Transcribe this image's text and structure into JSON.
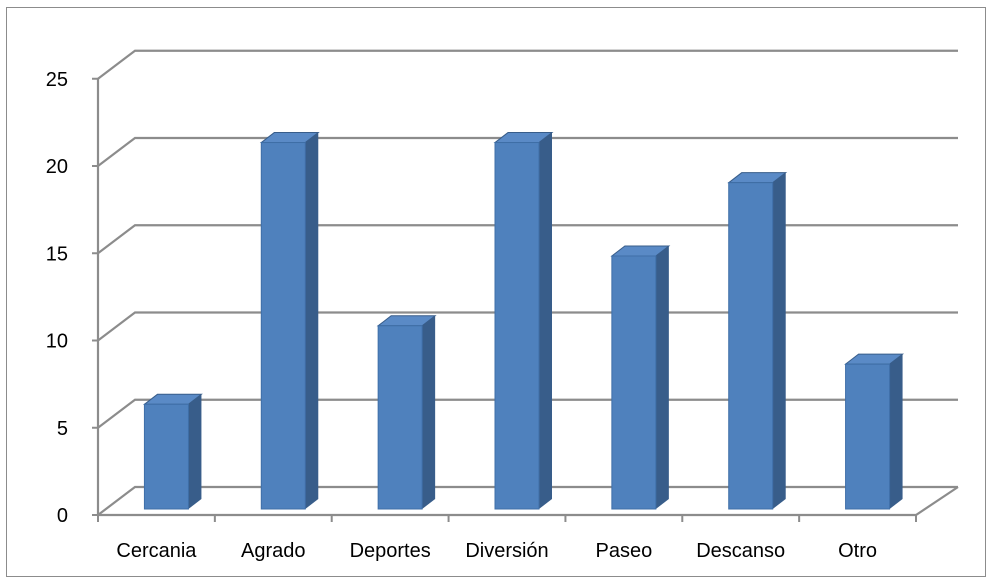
{
  "chart_data": {
    "type": "bar",
    "style": "3d-column",
    "categories": [
      "Cercania",
      "Agrado",
      "Deportes",
      "Diversión",
      "Paseo",
      "Descanso",
      "Otro"
    ],
    "values": [
      6,
      21,
      10.5,
      21,
      14.5,
      18.7,
      8.3
    ],
    "title": "",
    "xlabel": "",
    "ylabel": "",
    "ylim": [
      0,
      25
    ],
    "yticks": [
      0,
      5,
      10,
      15,
      20,
      25
    ],
    "grid": true,
    "legend": "none",
    "colors": {
      "bar_front": "#4F81BD",
      "bar_side": "#385D8A",
      "bar_top": "#5A8AC6",
      "gridline": "#8C8C8C",
      "axis": "#8C8C8C",
      "text": "#000000"
    }
  }
}
